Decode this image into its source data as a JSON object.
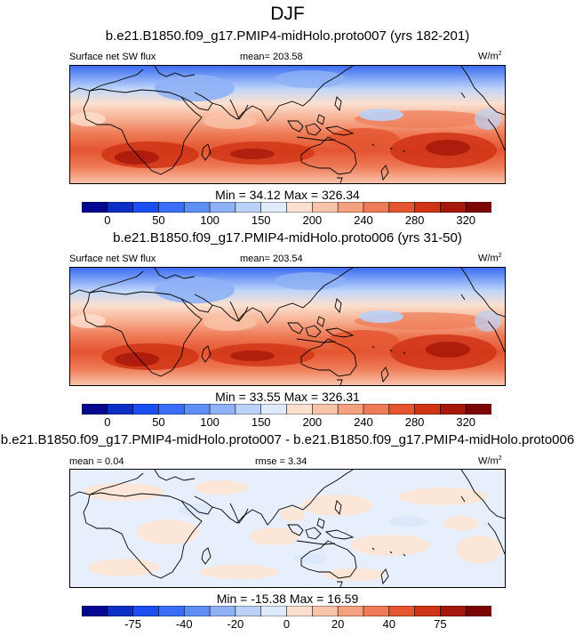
{
  "title": "DJF",
  "chart_data": [
    {
      "type": "heatmap",
      "title": "b.e21.B1850.f09_g17.PMIP4-midHolo.proto007 (yrs 182-201)",
      "variable": "Surface net SW flux",
      "mean_label": "mean= 203.58",
      "units_base": "W/m",
      "units_exp": "2",
      "minmax": "Min =  34.12 Max = 326.34",
      "min": 34.12,
      "max": 326.34,
      "mean": 203.58,
      "levels": [
        25,
        50,
        75,
        100,
        125,
        150,
        175,
        200,
        220,
        240,
        260,
        280,
        300,
        320,
        340
      ],
      "colorbar_colors": [
        "#04078f",
        "#0b2fc4",
        "#1b4ef0",
        "#3a6df8",
        "#5f8ff5",
        "#8fb1f5",
        "#bad2f7",
        "#ddebfb",
        "#fbe0d0",
        "#f9c3aa",
        "#f5a07f",
        "#ee7a56",
        "#e45530",
        "#cf3415",
        "#a8180a",
        "#7d0505"
      ],
      "colorbar_ticks": [
        "0",
        "50",
        "100",
        "150",
        "200",
        "240",
        "280",
        "320"
      ],
      "colorbar_tick_index": [
        1,
        3,
        5,
        7,
        9,
        11,
        13,
        15
      ]
    },
    {
      "type": "heatmap",
      "title": "b.e21.B1850.f09_g17.PMIP4-midHolo.proto006 (yrs 31-50)",
      "variable": "Surface net SW flux",
      "mean_label": "mean= 203.54",
      "units_base": "W/m",
      "units_exp": "2",
      "minmax": "Min =  33.55 Max = 326.31",
      "min": 33.55,
      "max": 326.31,
      "mean": 203.54,
      "colorbar_colors": [
        "#04078f",
        "#0b2fc4",
        "#1b4ef0",
        "#3a6df8",
        "#5f8ff5",
        "#8fb1f5",
        "#bad2f7",
        "#ddebfb",
        "#fbe0d0",
        "#f9c3aa",
        "#f5a07f",
        "#ee7a56",
        "#e45530",
        "#cf3415",
        "#a8180a",
        "#7d0505"
      ],
      "colorbar_ticks": [
        "0",
        "50",
        "100",
        "150",
        "200",
        "240",
        "280",
        "320"
      ],
      "colorbar_tick_index": [
        1,
        3,
        5,
        7,
        9,
        11,
        13,
        15
      ]
    },
    {
      "type": "heatmap",
      "title": "b.e21.B1850.f09_g17.PMIP4-midHolo.proto007 - b.e21.B1850.f09_g17.PMIP4-midHolo.proto006",
      "mean_label": "mean =  0.04",
      "rmse_label": "rmse =   3.34",
      "units_base": "W/m",
      "units_exp": "2",
      "minmax": "Min = -15.38 Max =  16.59",
      "min": -15.38,
      "max": 16.59,
      "mean": 0.04,
      "rmse": 3.34,
      "colorbar_colors": [
        "#04078f",
        "#0b2fc4",
        "#1b4ef0",
        "#3a6df8",
        "#5f8ff5",
        "#8fb1f5",
        "#bad2f7",
        "#ddebfb",
        "#fbe0d0",
        "#f9c3aa",
        "#f5a07f",
        "#ee7a56",
        "#e45530",
        "#cf3415",
        "#a8180a",
        "#7d0505"
      ],
      "colorbar_ticks": [
        "-75",
        "-40",
        "-20",
        "0",
        "20",
        "40",
        "75"
      ],
      "colorbar_tick_index": [
        2,
        4,
        6,
        8,
        10,
        12,
        14
      ]
    }
  ]
}
